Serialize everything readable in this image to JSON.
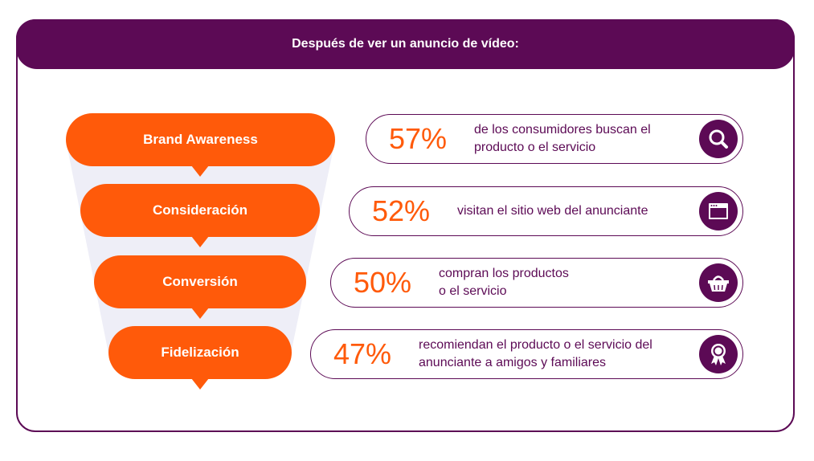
{
  "header": {
    "title": "Después de ver un anuncio de vídeo:"
  },
  "funnel": {
    "stages": [
      {
        "label": "Brand Awareness"
      },
      {
        "label": "Consideración"
      },
      {
        "label": "Conversión"
      },
      {
        "label": "Fidelización"
      }
    ]
  },
  "stats": [
    {
      "percent": "57%",
      "text": "de los consumidores buscan el\nproducto o el servicio",
      "icon": "search-icon"
    },
    {
      "percent": "52%",
      "text": "visitan el sitio web del anunciante",
      "icon": "browser-window-icon"
    },
    {
      "percent": "50%",
      "text": "compran los productos\no el servicio",
      "icon": "shopping-basket-icon"
    },
    {
      "percent": "47%",
      "text": "recomiendan el producto o el servicio del\nanunciante a amigos y familiares",
      "icon": "award-ribbon-icon"
    }
  ],
  "colors": {
    "primary": "#5c0a55",
    "accent": "#ff5a0a",
    "funnel_bg": "#eeeef7"
  }
}
